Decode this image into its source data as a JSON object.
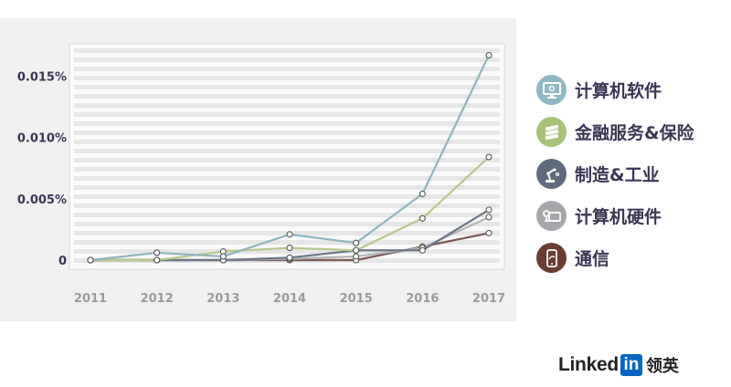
{
  "chart_data": {
    "type": "line",
    "x": [
      "2011",
      "2012",
      "2013",
      "2014",
      "2015",
      "2016",
      "2017"
    ],
    "ylim": [
      0,
      0.0175
    ],
    "yticks": [
      {
        "value": 0,
        "label": "0"
      },
      {
        "value": 0.005,
        "label": "0.005%"
      },
      {
        "value": 0.01,
        "label": "0.010%"
      },
      {
        "value": 0.015,
        "label": "0.015%"
      }
    ],
    "grid": "horizontal-bands",
    "legend_position": "right",
    "series": [
      {
        "name": "计算机软件",
        "color": "#8fb4bd",
        "icon": "monitor-icon",
        "icon_bg": "#8fb8c2",
        "values": [
          0,
          0.0006,
          0.0003,
          0.0021,
          0.0014,
          0.0054,
          0.0167
        ]
      },
      {
        "name": "金融服务&保险",
        "color": "#b6c98a",
        "icon": "money-stack-icon",
        "icon_bg": "#a9c27a",
        "values": [
          0,
          0,
          0.0007,
          0.001,
          0.0008,
          0.0034,
          0.0084
        ]
      },
      {
        "name": "制造&工业",
        "color": "#6a7585",
        "icon": "robot-arm-icon",
        "icon_bg": "#5f6b7c",
        "values": [
          0,
          0,
          0,
          0.0002,
          0.0008,
          0.0008,
          0.0041
        ]
      },
      {
        "name": "计算机硬件",
        "color": "#b4b4b8",
        "icon": "hardware-icon",
        "icon_bg": "#a7a7ab",
        "values": [
          0,
          0,
          0,
          0.0001,
          0.0003,
          0.001,
          0.0035
        ]
      },
      {
        "name": "通信",
        "color": "#7a5a55",
        "icon": "phone-icon",
        "icon_bg": "#6b3d33",
        "values": [
          0,
          0,
          0,
          0,
          0,
          0.0011,
          0.0022
        ]
      }
    ]
  },
  "brand": {
    "linked": "Linked",
    "in": "in",
    "cn": "领英"
  }
}
